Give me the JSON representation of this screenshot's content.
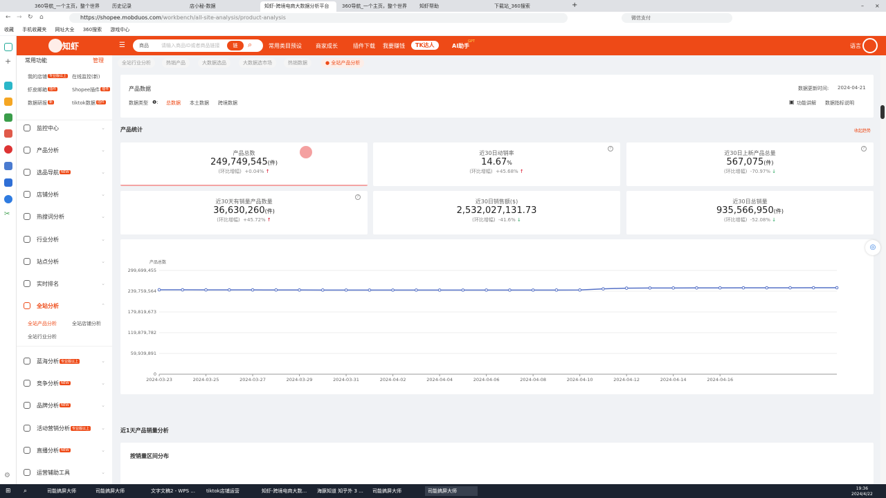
{
  "browser": {
    "tabs": [
      "360导航_一个主页，整个世界",
      "历史记录",
      "店小秘-数据",
      "知虾-跨境电商大数据分析平台",
      "360导航_一个主页，整个世界",
      "知虾帮助",
      "下载站_360搜索"
    ],
    "url_host": "https://shopee.mobduos.com",
    "url_path": "/workbench/all-site-analysis/product-analysis",
    "search_placeholder": "微信支付",
    "bookmarks": [
      "收藏",
      "手机收藏夹",
      "网址大全",
      "360搜索",
      "游戏中心"
    ]
  },
  "header": {
    "logo": "知虾",
    "search_category": "商品",
    "search_placeholder": "请输入商品ID或者商品链接",
    "link_toggle": "链",
    "nav": [
      "常用类目预设",
      "商家成长",
      "插件下载",
      "我要赚钱"
    ],
    "tk_button": "TK达人",
    "ai_label": "AI助手",
    "ai_badge": "GPT",
    "language": "语言",
    "brand_color": "#ee4a17"
  },
  "sidebar": {
    "common_title": "常用功能",
    "manage": "管理",
    "common_items": [
      {
        "label": "我的店铺",
        "badge": "专业版以上"
      },
      {
        "label": "在线监控(新)",
        "badge": ""
      },
      {
        "label": "虾皮邮箱",
        "badge": "插件"
      },
      {
        "label": "Shopee插件",
        "badge": "插件"
      },
      {
        "label": "数据研报",
        "badge": "新"
      },
      {
        "label": "tiktok数据",
        "badge": "插件"
      }
    ],
    "menu": [
      {
        "label": "监控中心",
        "badge": ""
      },
      {
        "label": "产品分析",
        "badge": ""
      },
      {
        "label": "选品导航",
        "badge": "NEW"
      },
      {
        "label": "店铺分析",
        "badge": ""
      },
      {
        "label": "热搜词分析",
        "badge": ""
      },
      {
        "label": "行业分析",
        "badge": ""
      },
      {
        "label": "站点分析",
        "badge": ""
      },
      {
        "label": "实时排名",
        "badge": ""
      },
      {
        "label": "全站分析",
        "badge": ""
      }
    ],
    "submenu": [
      "全站产品分析",
      "全站店铺分析",
      "全站行业分析"
    ],
    "menu2": [
      {
        "label": "蓝海分析",
        "badge": "专业版以上"
      },
      {
        "label": "竞争分析",
        "badge": "NEW"
      },
      {
        "label": "品牌分析",
        "badge": "NEW"
      },
      {
        "label": "活动营销分析",
        "badge": "专业版以上"
      },
      {
        "label": "直播分析",
        "badge": "NEW"
      },
      {
        "label": "运营辅助工具",
        "badge": ""
      }
    ]
  },
  "breadcrumbs": [
    "全站行业分析",
    "热销产品",
    "大数据选品",
    "大数据选市场",
    "热销数据",
    "全站产品分析"
  ],
  "product_data": {
    "title": "产品数据",
    "type_label": "数据类型",
    "types": [
      "总数据",
      "本土数据",
      "跨境数据"
    ],
    "update_label": "数据更新时间:",
    "update_date": "2024-04-21",
    "feature_link": "功能讲解",
    "explain_link": "数据指标说明"
  },
  "stats_section": {
    "title": "产品统计",
    "collapse": "收起趋势",
    "cards": [
      {
        "label": "产品总数",
        "value": "249,749,545",
        "unit": "(件)",
        "chg_label": "(环比增幅)",
        "chg": "+0.04%",
        "dir": "up"
      },
      {
        "label": "近30日动销率",
        "value": "14.67",
        "unit": "%",
        "chg_label": "(环比增幅)",
        "chg": "+45.68%",
        "dir": "up"
      },
      {
        "label": "近30日上新产品总量",
        "value": "567,075",
        "unit": "(件)",
        "chg_label": "(环比增幅)",
        "chg": "-70.97%",
        "dir": "down"
      },
      {
        "label": "近30天有销量产品数量",
        "value": "36,630,260",
        "unit": "(件)",
        "chg_label": "(环比增幅)",
        "chg": "+45.72%",
        "dir": "up"
      },
      {
        "label": "近30日销售额($)",
        "value": "2,532,027,131.73",
        "unit": "",
        "chg_label": "(环比增幅)",
        "chg": "-41.6%",
        "dir": "down"
      },
      {
        "label": "近30日总销量",
        "value": "935,566,950",
        "unit": "(件)",
        "chg_label": "(环比增幅)",
        "chg": "-52.08%",
        "dir": "down"
      }
    ]
  },
  "chart_data": {
    "type": "line",
    "ylabel": "产品总数",
    "ylim": [
      0,
      299699455
    ],
    "yticks": [
      "0",
      "59,939,891",
      "119,879,782",
      "179,819,673",
      "239,759,564",
      "299,699,455"
    ],
    "ytick_values": [
      0,
      59939891,
      119879782,
      179819673,
      239759564,
      299699455
    ],
    "xtick_labels": [
      "2024-03-23",
      "2024-03-25",
      "2024-03-27",
      "2024-03-29",
      "2024-03-31",
      "2024-04-02",
      "2024-04-04",
      "2024-04-06",
      "2024-04-08",
      "2024-04-10",
      "2024-04-12",
      "2024-04-14",
      "2024-04-16"
    ],
    "x": [
      "2024-03-23",
      "2024-03-24",
      "2024-03-25",
      "2024-03-26",
      "2024-03-27",
      "2024-03-28",
      "2024-03-29",
      "2024-03-30",
      "2024-03-31",
      "2024-04-01",
      "2024-04-02",
      "2024-04-03",
      "2024-04-04",
      "2024-04-05",
      "2024-04-06",
      "2024-04-07",
      "2024-04-08",
      "2024-04-09",
      "2024-04-10",
      "2024-04-11",
      "2024-04-12",
      "2024-04-13",
      "2024-04-14",
      "2024-04-15",
      "2024-04-16",
      "2024-04-17",
      "2024-04-18",
      "2024-04-19",
      "2024-04-20",
      "2024-04-21"
    ],
    "values": [
      243800000,
      243700000,
      243600000,
      243500000,
      243400000,
      243300000,
      243200000,
      243100000,
      243000000,
      243000000,
      243000000,
      243000000,
      243000000,
      243000000,
      243000000,
      243000000,
      243000000,
      243100000,
      243200000,
      246500000,
      248600000,
      249000000,
      249100000,
      249200000,
      249300000,
      249400000,
      249500000,
      249600000,
      249700000,
      249749545
    ],
    "color": "#5470c6",
    "grid": true
  },
  "sales_section": {
    "title": "近1天产品销量分析",
    "subtitle": "按销量区间分布"
  },
  "taskbar": {
    "items": [
      "司能搞屏大师",
      "司能搞屏大师",
      "文字文稿2 - WPS ...",
      "tiktok店铺运营",
      "知虾-跨境电商大数...",
      "海豚知道 知乎外 3 ...",
      "司能搞屏大师",
      "司能搞屏大师"
    ],
    "time": "19:36",
    "date": "2024/4/22"
  }
}
